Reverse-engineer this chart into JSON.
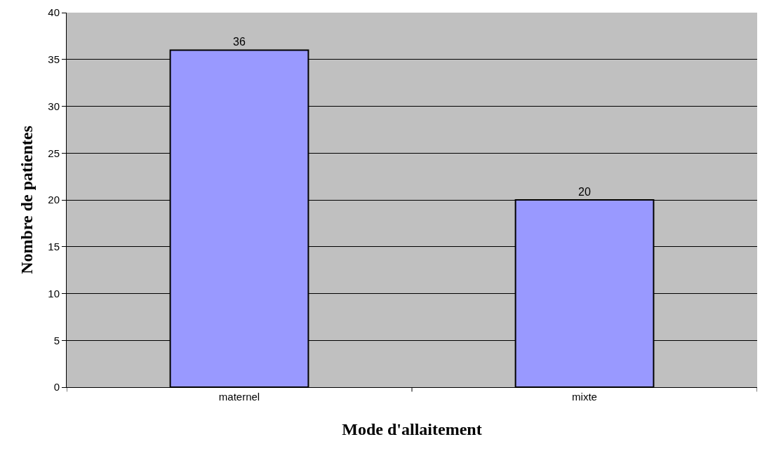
{
  "chart_data": {
    "type": "bar",
    "xlabel": "Mode d'allaitement",
    "ylabel": "Nombre de patientes",
    "categories": [
      "maternel",
      "mixte"
    ],
    "values": [
      36,
      20
    ],
    "color": "#9999ff",
    "ylim": [
      0,
      40
    ],
    "yticks": [
      0,
      5,
      10,
      15,
      20,
      25,
      30,
      35,
      40
    ],
    "grid": "y",
    "data_labels": true
  }
}
